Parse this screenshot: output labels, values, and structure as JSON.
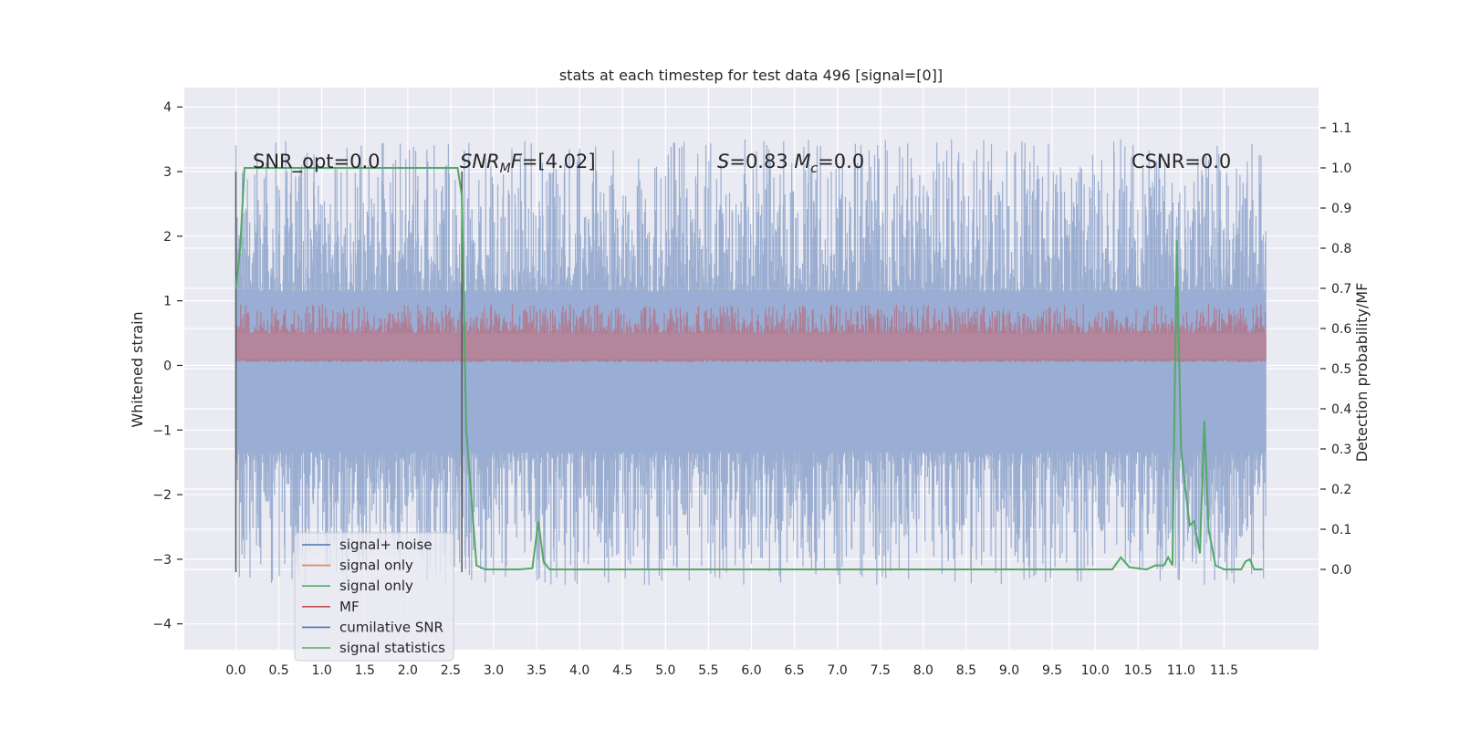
{
  "chart_data": {
    "type": "line",
    "title": "stats at each timestep for test data 496 [signal=[0]]",
    "ylabel": "Whitened strain",
    "y2label": "Detection probability/MF",
    "grid": true,
    "xlim": [
      -0.6,
      12.6
    ],
    "ylim": [
      -4.4,
      4.3
    ],
    "y2lim": [
      -0.2,
      1.2
    ],
    "x_ticks": [
      "0.0",
      "0.5",
      "1.0",
      "1.5",
      "2.0",
      "2.5",
      "3.0",
      "3.5",
      "4.0",
      "4.5",
      "5.0",
      "5.5",
      "6.0",
      "6.5",
      "7.0",
      "7.5",
      "8.0",
      "8.5",
      "9.0",
      "9.5",
      "10.0",
      "10.5",
      "11.0",
      "11.5"
    ],
    "y_ticks": [
      "−4",
      "−3",
      "−2",
      "−1",
      "0",
      "1",
      "2",
      "3",
      "4"
    ],
    "y2_ticks": [
      "0.0",
      "0.1",
      "0.2",
      "0.3",
      "0.4",
      "0.5",
      "0.6",
      "0.7",
      "0.8",
      "0.9",
      "1.0",
      "1.1"
    ],
    "annotations": [
      {
        "text": "SNR_opt=0.0",
        "x": 0.2
      },
      {
        "text": "SNR_MF=[4.02]",
        "x": 2.62
      },
      {
        "text": "S=0.83   M_c=0.0",
        "x": 5.6
      },
      {
        "text": "CSNR=0.0",
        "x": 10.4
      }
    ],
    "vlines": [
      0.0,
      2.63
    ],
    "series": [
      {
        "name": "signal+ noise",
        "color": "#4c72b0",
        "description_range": [
          -3.5,
          3.5
        ]
      },
      {
        "name": "signal only",
        "color": "#dd8452"
      },
      {
        "name": "signal only",
        "color": "#55a868"
      },
      {
        "name": "MF",
        "color": "#c44e52",
        "range": [
          0.0,
          0.55
        ]
      },
      {
        "name": "cumilative SNR",
        "color": "#4c72b0"
      },
      {
        "name": "signal statistics",
        "color": "#55a868",
        "x": [
          0.0,
          0.05,
          0.1,
          0.2,
          2.5,
          2.58,
          2.63,
          2.68,
          2.75,
          2.8,
          2.9,
          3.0,
          3.3,
          3.45,
          3.52,
          3.58,
          3.65,
          3.75,
          10.0,
          10.2,
          10.3,
          10.4,
          10.6,
          10.7,
          10.8,
          10.85,
          10.9,
          10.95,
          11.0,
          11.05,
          11.1,
          11.15,
          11.22,
          11.27,
          11.32,
          11.4,
          11.5,
          11.6,
          11.7,
          11.75,
          11.8,
          11.85,
          11.95
        ],
        "y": [
          0.7,
          0.8,
          1.0,
          1.0,
          1.0,
          1.0,
          0.93,
          0.35,
          0.15,
          0.01,
          0.0,
          0.0,
          0.0,
          0.003,
          0.12,
          0.02,
          0.0,
          0.0,
          0.0,
          0.0,
          0.03,
          0.005,
          0.0,
          0.01,
          0.01,
          0.03,
          0.01,
          0.82,
          0.3,
          0.2,
          0.11,
          0.12,
          0.04,
          0.37,
          0.1,
          0.01,
          0.0,
          0.0,
          0.0,
          0.02,
          0.025,
          0.0,
          0.0
        ]
      }
    ],
    "legend_position": "lower-left"
  },
  "legend": {
    "items": [
      {
        "label": "signal+ noise",
        "color": "#4c72b0"
      },
      {
        "label": "signal only",
        "color": "#dd8452"
      },
      {
        "label": "signal only",
        "color": "#55a868"
      },
      {
        "label": "MF",
        "color": "#c44e52"
      },
      {
        "label": "cumilative SNR",
        "color": "#4c72b0"
      },
      {
        "label": "signal statistics",
        "color": "#55a868"
      }
    ]
  }
}
